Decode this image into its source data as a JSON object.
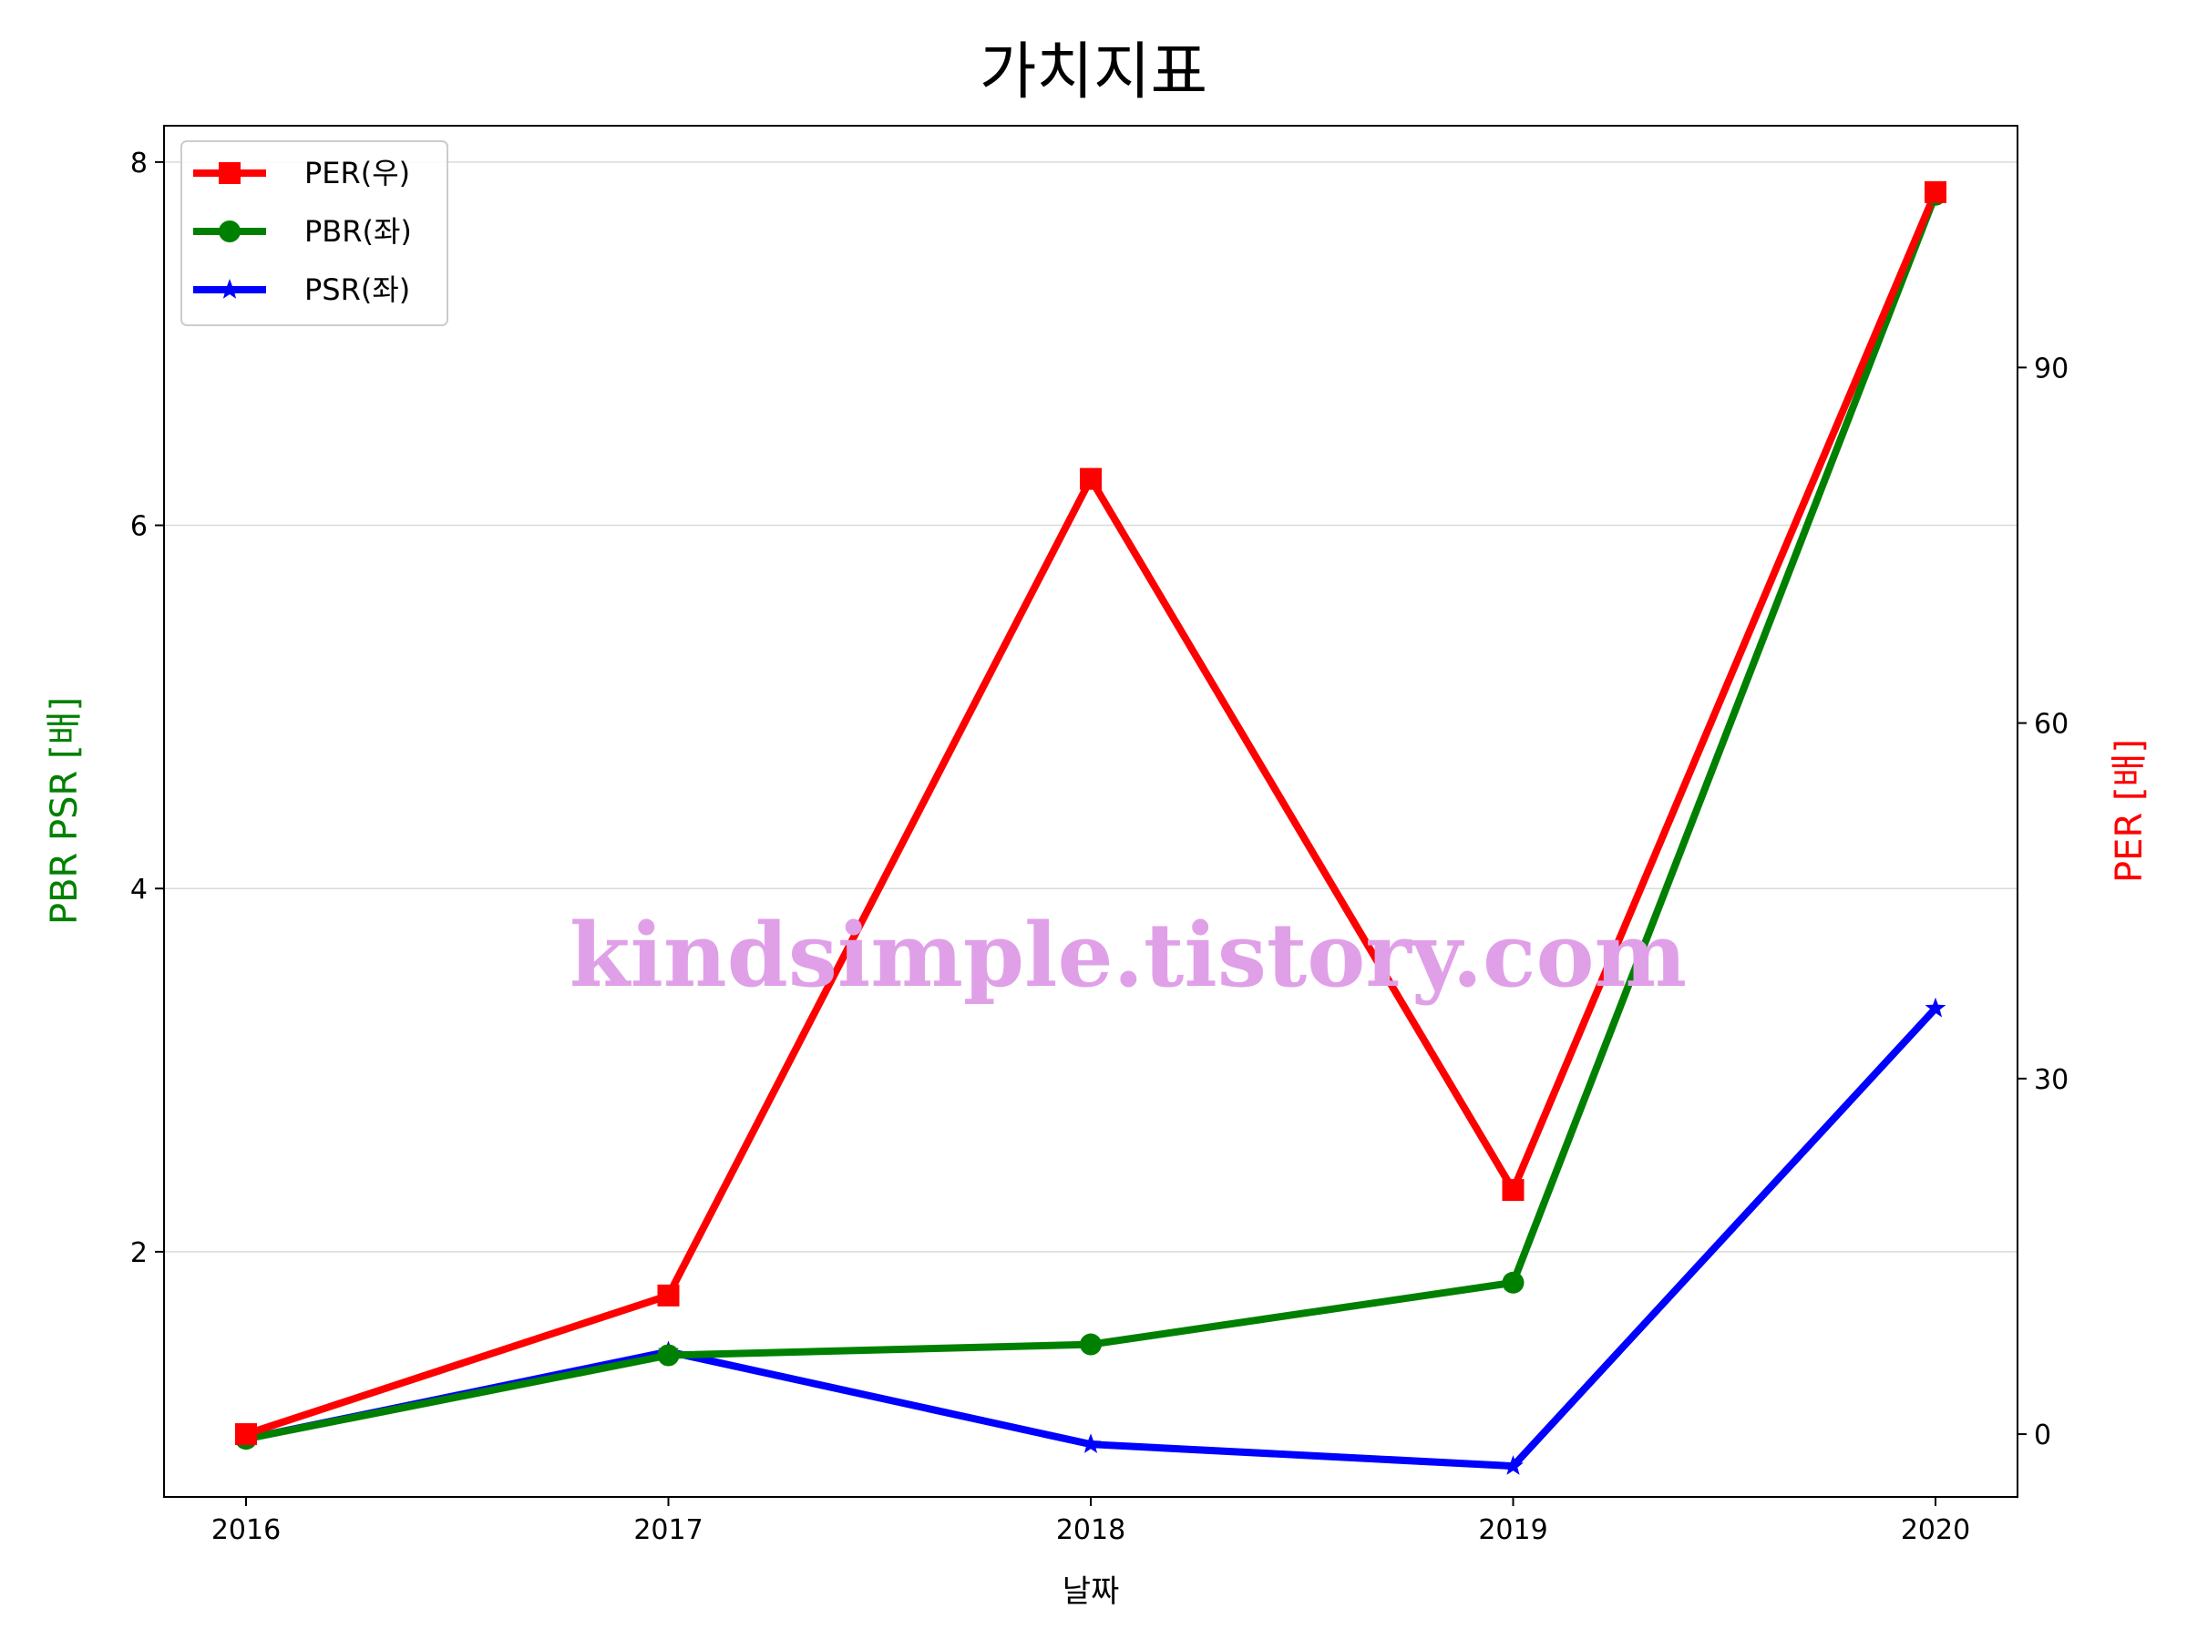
{
  "chart_data": {
    "type": "line",
    "title": "가치지표",
    "xlabel": "날짜",
    "ylabel_left": "PBR PSR [배]",
    "ylabel_right": "PER [배]",
    "categories": [
      "2016",
      "2017",
      "2018",
      "2019",
      "2020"
    ],
    "ylim_left": [
      0.65,
      8.2
    ],
    "ylim_right": [
      -5.3,
      110.4
    ],
    "yticks_left": [
      2,
      4,
      6,
      8
    ],
    "yticks_right": [
      0,
      30,
      60,
      90
    ],
    "grid": "horizontal",
    "legend": "top-left",
    "series": [
      {
        "name": "PER(우)",
        "axis": "right",
        "color": "#ff0000",
        "marker": "square",
        "values": [
          0,
          11.7,
          80.6,
          20.6,
          104.8
        ]
      },
      {
        "name": "PBR(좌)",
        "axis": "left",
        "color": "#008000",
        "marker": "circle",
        "values": [
          0.97,
          1.43,
          1.49,
          1.83,
          7.82
        ]
      },
      {
        "name": "PSR(좌)",
        "axis": "left",
        "color": "#0000ff",
        "marker": "star",
        "values": [
          0.97,
          1.45,
          0.94,
          0.82,
          3.34
        ]
      }
    ],
    "watermark": {
      "text": "kindsimple.tistory.com",
      "color": "#e0a0e8"
    }
  }
}
